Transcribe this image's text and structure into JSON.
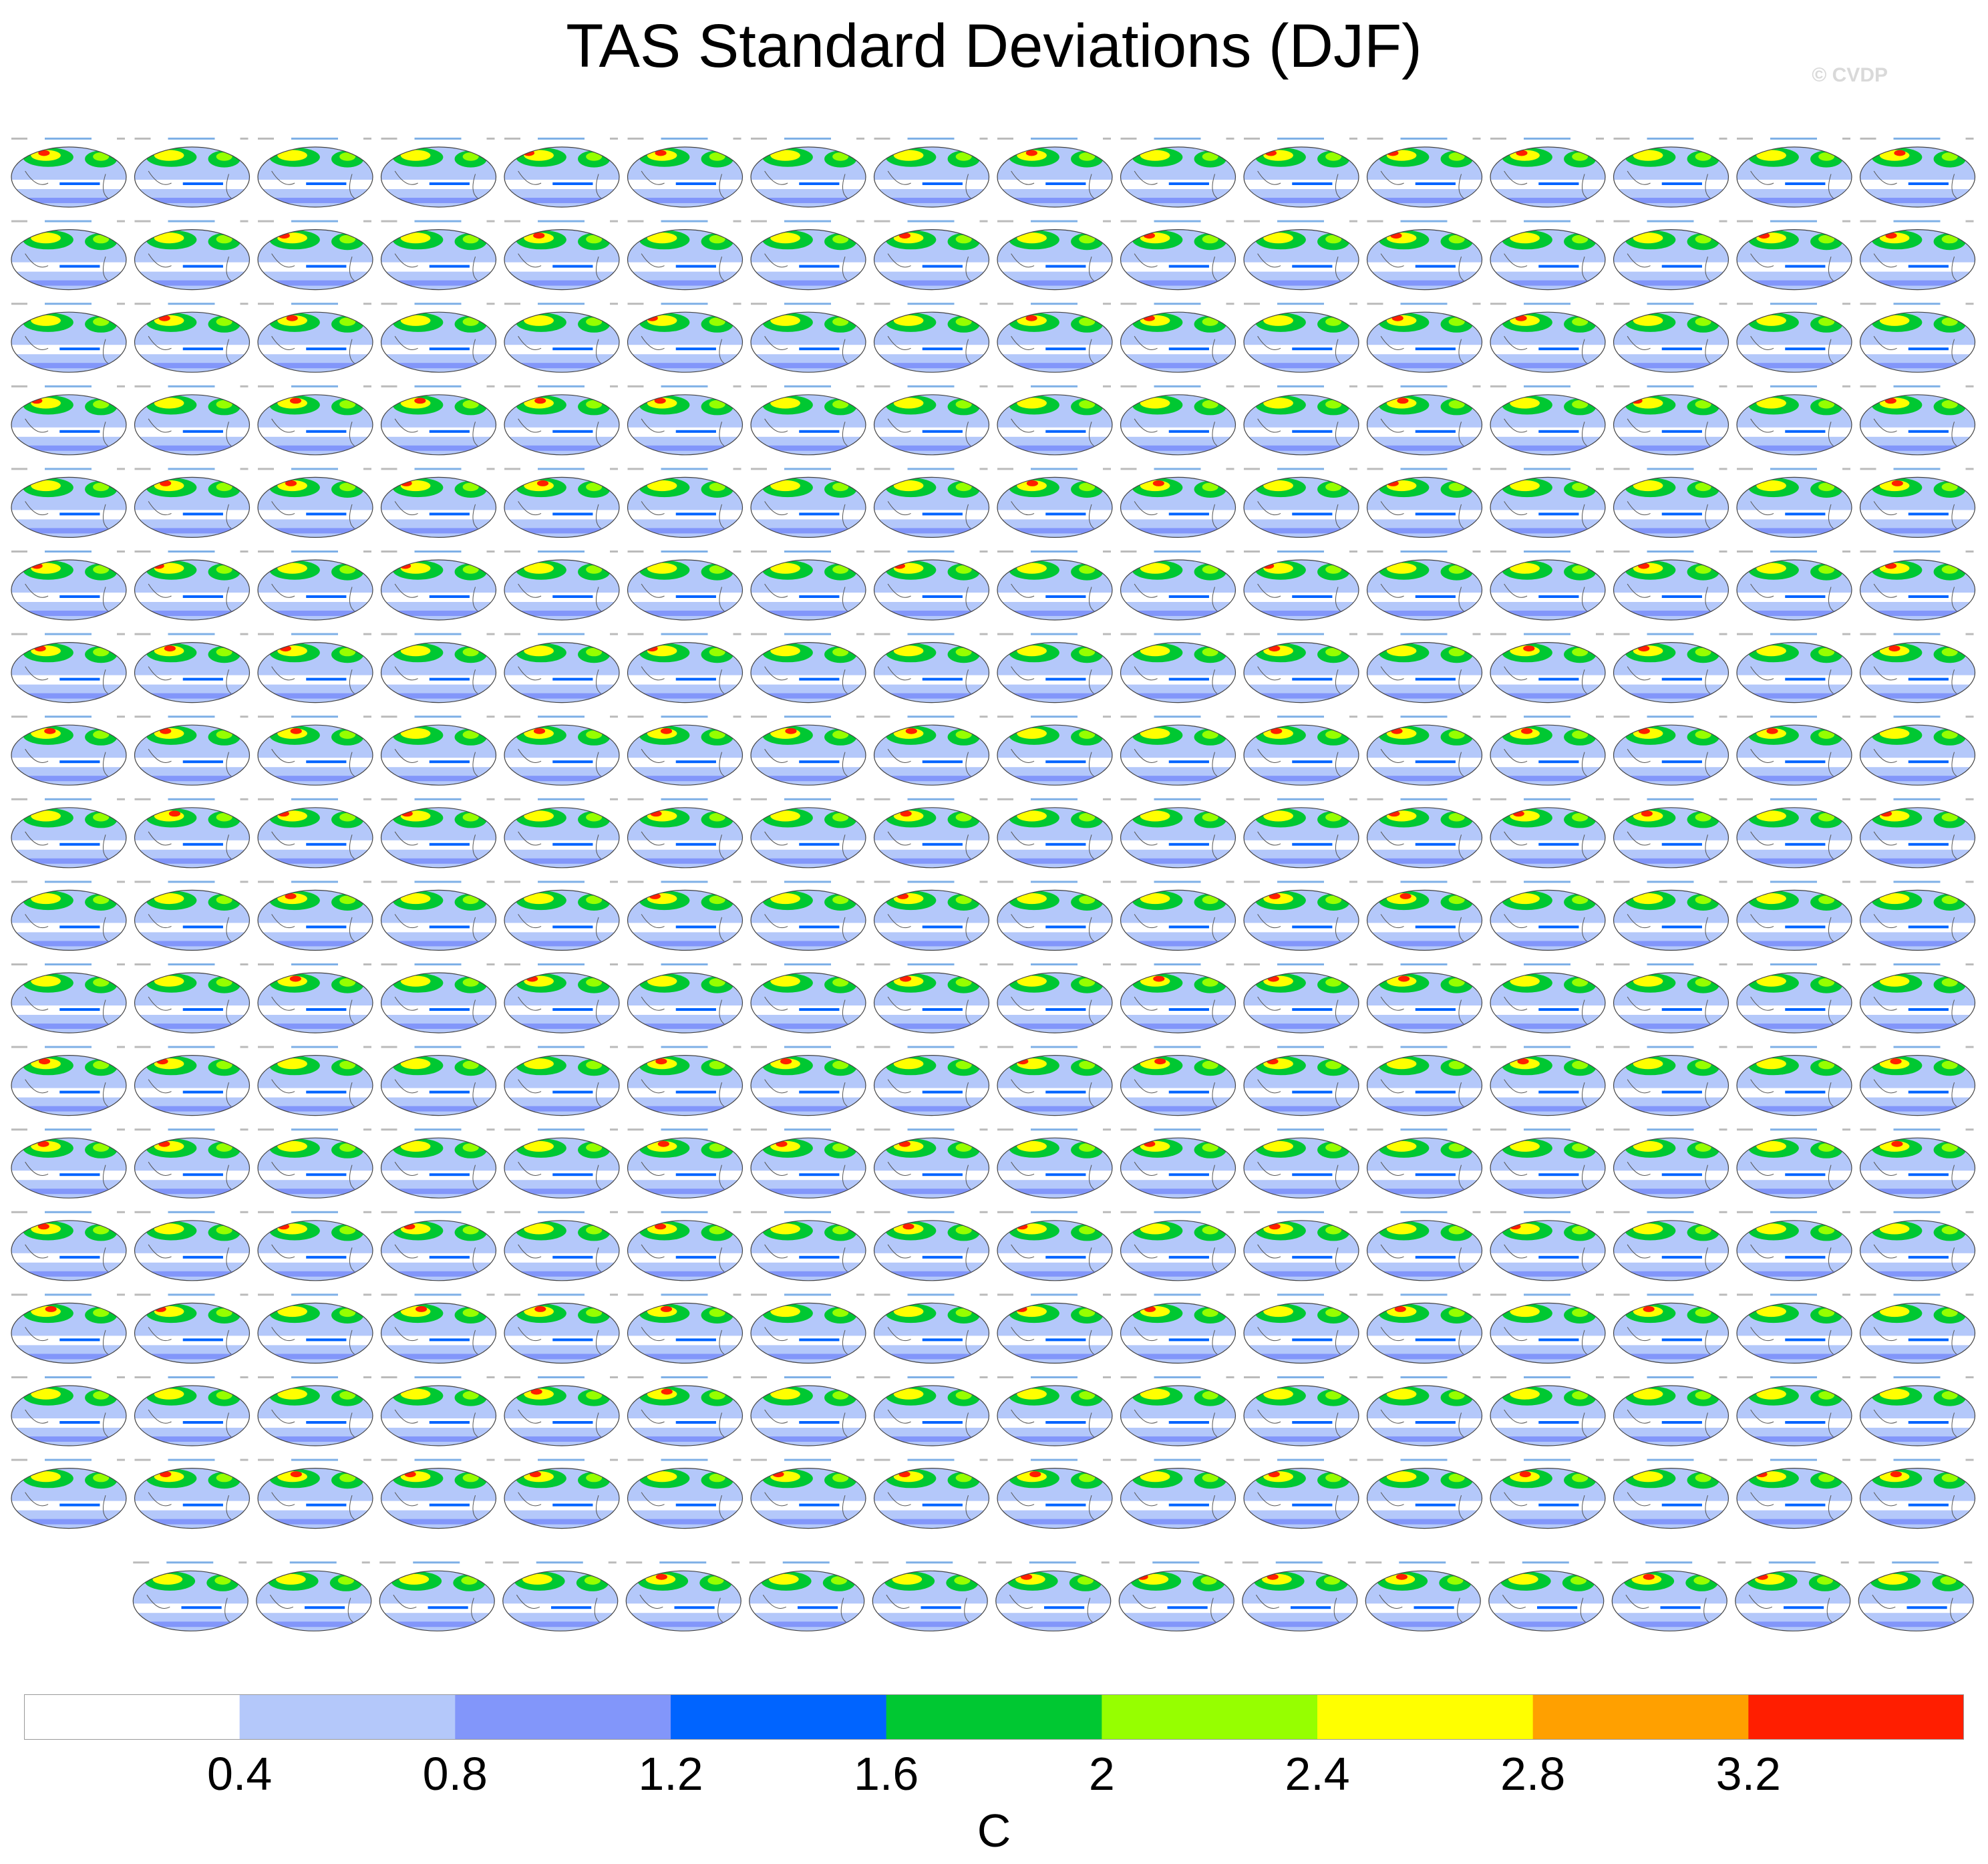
{
  "title": "TAS Standard Deviations (DJF)",
  "watermark": "© CVDP",
  "chart_data": {
    "type": "heatmap",
    "description_of_panels": "Small-multiple global maps of DJF surface air temperature standard deviation",
    "panel_rows": 18,
    "panel_cols_per_row": [
      16,
      16,
      16,
      16,
      16,
      16,
      16,
      16,
      16,
      16,
      16,
      16,
      16,
      16,
      16,
      16,
      16,
      15
    ],
    "colorbar": {
      "unit": "C",
      "boundaries": [
        0.4,
        0.8,
        1.2,
        1.6,
        2,
        2.4,
        2.8,
        3.2
      ],
      "tick_labels": [
        "0.4",
        "0.8",
        "1.2",
        "1.6",
        "2",
        "2.4",
        "2.8",
        "3.2"
      ],
      "colors": [
        "#ffffff",
        "#b4c8fa",
        "#8296fa",
        "#0064ff",
        "#00c832",
        "#96ff00",
        "#ffff00",
        "#ffa000",
        "#ff1e00"
      ]
    }
  }
}
